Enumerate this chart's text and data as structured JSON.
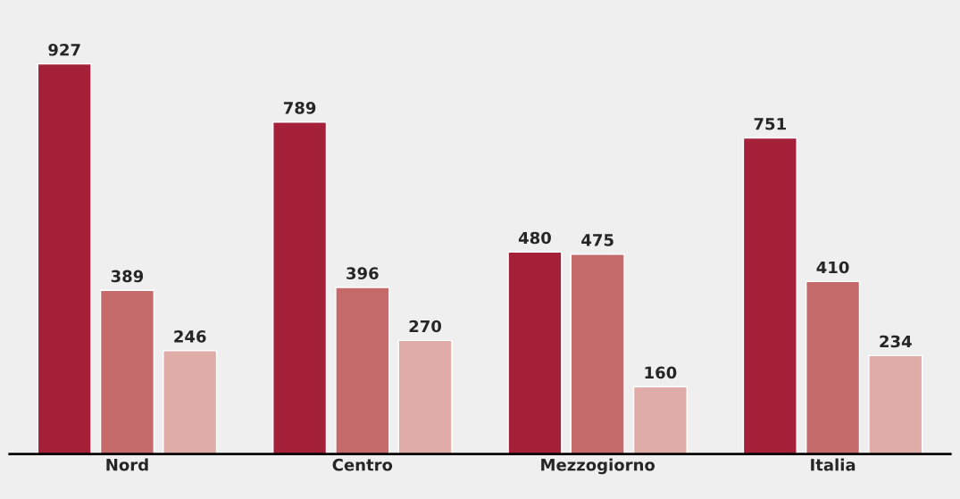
{
  "chart_data": {
    "type": "bar",
    "categories": [
      "Nord",
      "Centro",
      "Mezzogiorno",
      "Italia"
    ],
    "series": [
      {
        "color": "#a52039",
        "values": [
          927,
          789,
          480,
          751
        ]
      },
      {
        "color": "#c46a6a",
        "values": [
          389,
          396,
          475,
          410
        ]
      },
      {
        "color": "#e0aca7",
        "values": [
          246,
          270,
          160,
          234
        ]
      }
    ],
    "data_labels": true
  }
}
